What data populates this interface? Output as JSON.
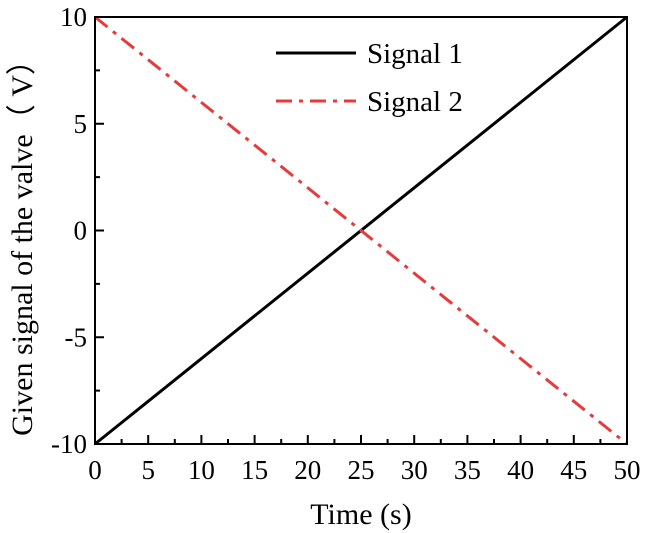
{
  "chart_data": {
    "type": "line",
    "xlabel": "Time (s)",
    "ylabel": "Given signal of the valve（ V）",
    "xlim": [
      0,
      50
    ],
    "ylim": [
      -10,
      10
    ],
    "x_ticks": [
      0,
      5,
      10,
      15,
      20,
      25,
      30,
      35,
      40,
      45,
      50
    ],
    "y_ticks": [
      -10,
      -5,
      0,
      5,
      10
    ],
    "x_tick_labels": [
      "0",
      "5",
      "10",
      "15",
      "20",
      "25",
      "30",
      "35",
      "40",
      "45",
      "50"
    ],
    "y_tick_labels": [
      "-10",
      "-5",
      "0",
      "5",
      "10"
    ],
    "grid": false,
    "legend_position": "top-right",
    "series": [
      {
        "name": "Signal 1",
        "color": "#000000",
        "line_style": "solid",
        "x": [
          0,
          50
        ],
        "y": [
          -10,
          10
        ]
      },
      {
        "name": "Signal 2",
        "color": "#e8393b",
        "line_style": "dash-dot",
        "x": [
          0,
          50
        ],
        "y": [
          10,
          -10
        ]
      }
    ]
  }
}
